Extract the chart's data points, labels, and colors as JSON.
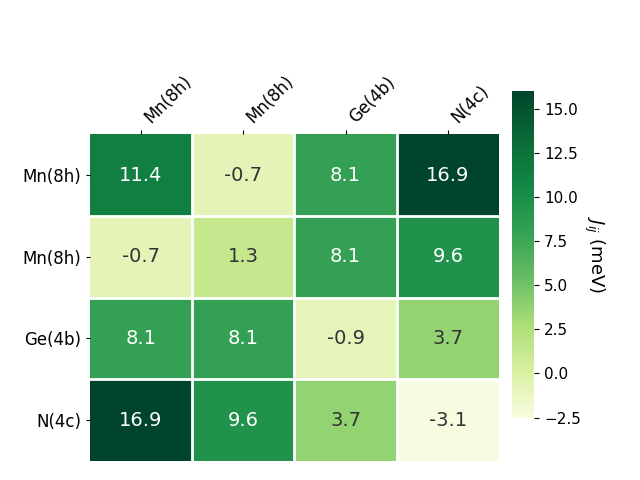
{
  "matrix": [
    [
      11.4,
      -0.7,
      8.1,
      16.9
    ],
    [
      -0.7,
      1.3,
      8.1,
      9.6
    ],
    [
      8.1,
      8.1,
      -0.9,
      3.7
    ],
    [
      16.9,
      9.6,
      3.7,
      -3.1
    ]
  ],
  "row_labels": [
    "Mn(8h)",
    "Mn(8h)",
    "Ge(4b)",
    "N(4c)"
  ],
  "col_labels": [
    "Mn(8h)",
    "Mn(8h)",
    "Ge(4b)",
    "N(4c)"
  ],
  "colorbar_label": "$J_{ij}$ (meV)",
  "vmin": -2.5,
  "vmax": 16.0,
  "colorbar_ticks": [
    -2.5,
    0.0,
    2.5,
    5.0,
    7.5,
    10.0,
    12.5,
    15.0
  ],
  "figsize": [
    6.4,
    4.8
  ],
  "dpi": 100,
  "cell_fontsize": 14,
  "label_fontsize": 12,
  "colorbar_fontsize": 11,
  "colorbar_label_fontsize": 13
}
